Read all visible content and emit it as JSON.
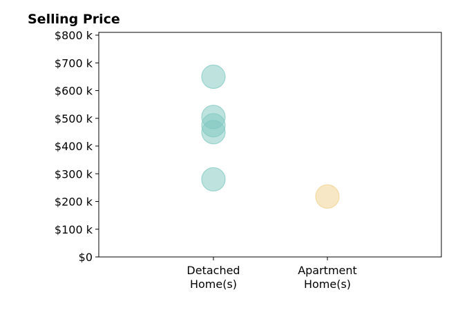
{
  "chart_data": {
    "type": "scatter",
    "title": "Selling Price",
    "xlabel": "",
    "ylabel": "",
    "categories": [
      "Detached\nHome(s)",
      "Apartment\nHome(s)"
    ],
    "ylim": [
      0,
      810000
    ],
    "y_ticks": [
      0,
      100000,
      200000,
      300000,
      400000,
      500000,
      600000,
      700000,
      800000
    ],
    "y_tick_labels": [
      "$0",
      "$100 k",
      "$200 k",
      "$300 k",
      "$400 k",
      "$500 k",
      "$600 k",
      "$700 k",
      "$800 k"
    ],
    "grid": false,
    "legend": "none",
    "series": [
      {
        "category": "Detached\nHome(s)",
        "color": "#7ec8c0",
        "values": [
          650000,
          505000,
          475000,
          450000,
          280000
        ]
      },
      {
        "category": "Apartment\nHome(s)",
        "color": "#f0d08c",
        "values": [
          218000
        ]
      }
    ]
  }
}
